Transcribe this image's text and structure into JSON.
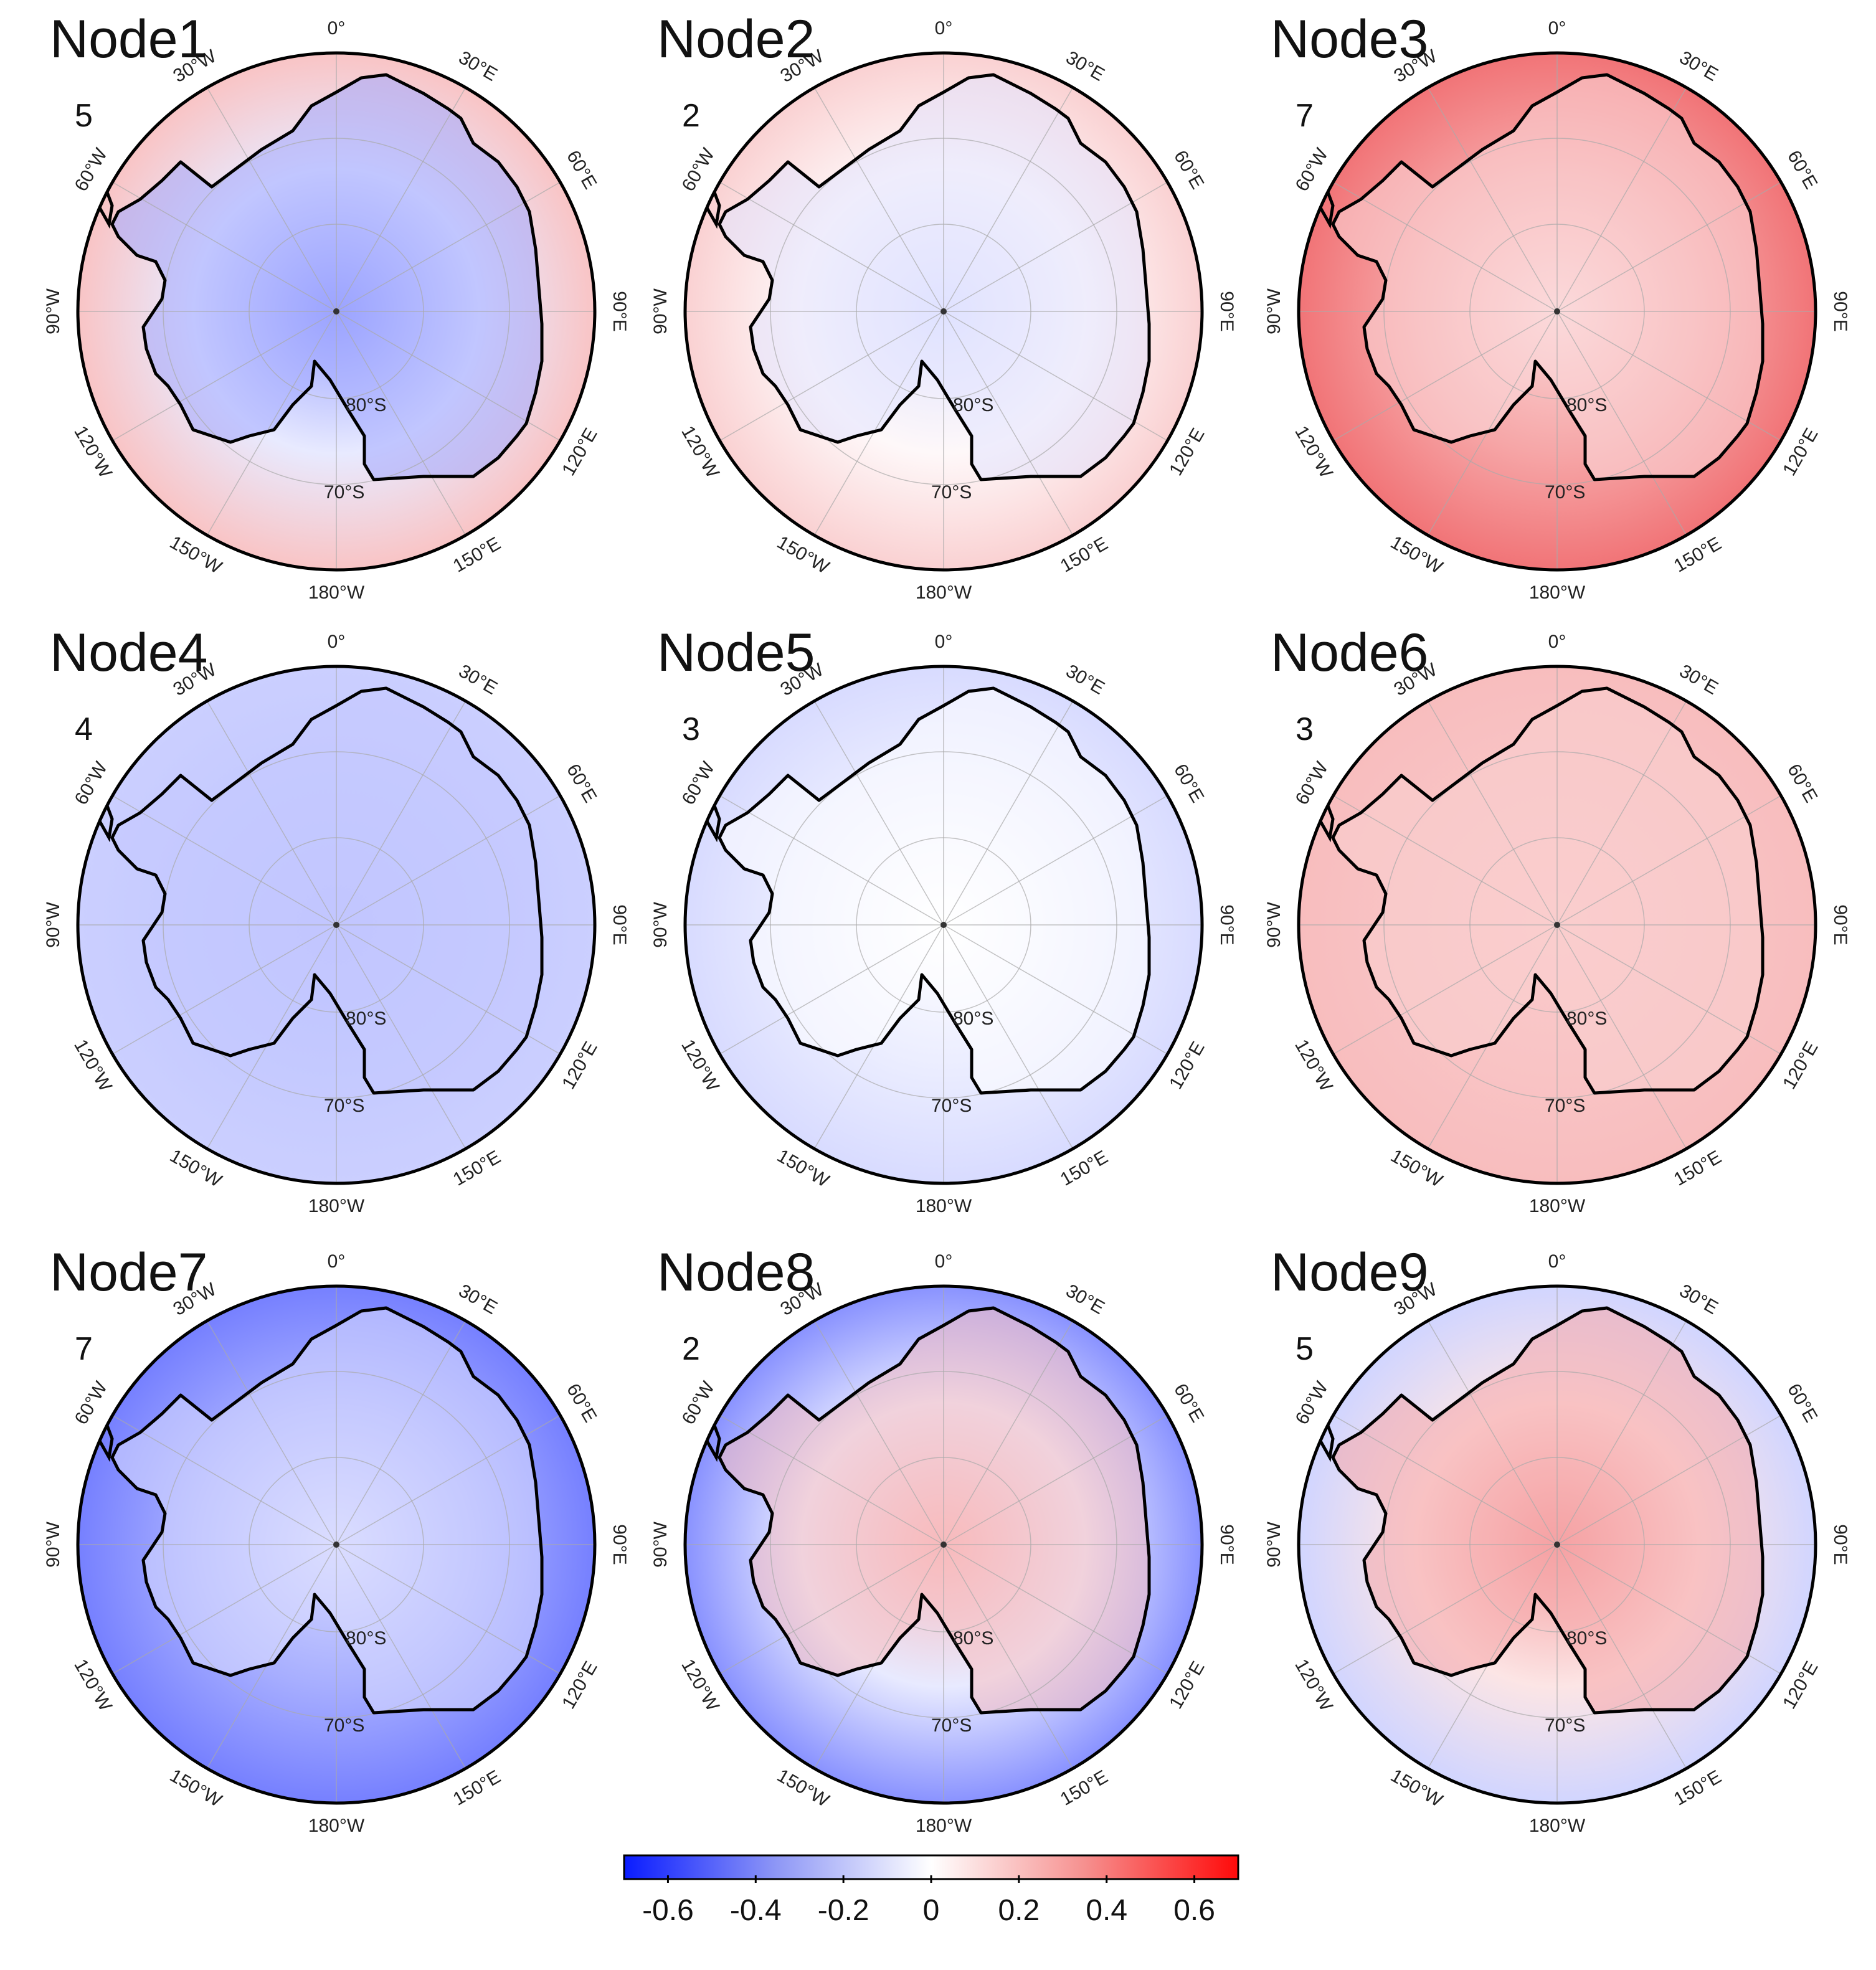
{
  "meridian_labels": [
    "0°",
    "30°E",
    "60°E",
    "90°E",
    "120°E",
    "150°E",
    "180°W",
    "150°W",
    "120°W",
    "90°W",
    "60°W",
    "30°W"
  ],
  "latitude_labels": [
    "80°S",
    "70°S"
  ],
  "palette": {
    "negative": "#2b3cf0",
    "neutral": "#ffffff",
    "positive": "#e8262a",
    "coast": "#000000",
    "grid": "#bbbbbb"
  },
  "nodes": [
    {
      "title": "Node1",
      "count": "5",
      "tone": "mixed",
      "ocean": 0.18,
      "continent": -0.32
    },
    {
      "title": "Node2",
      "count": "2",
      "tone": "mixed",
      "ocean": 0.14,
      "continent": -0.1
    },
    {
      "title": "Node3",
      "count": "7",
      "tone": "mixed",
      "ocean": 0.42,
      "continent": 0.12
    },
    {
      "title": "Node4",
      "count": "4",
      "tone": "negative",
      "ocean": -0.16,
      "continent": -0.2
    },
    {
      "title": "Node5",
      "count": "3",
      "tone": "negative",
      "ocean": -0.12,
      "continent": 0.0
    },
    {
      "title": "Node6",
      "count": "3",
      "tone": "positive",
      "ocean": 0.2,
      "continent": 0.16
    },
    {
      "title": "Node7",
      "count": "7",
      "tone": "negative",
      "ocean": -0.42,
      "continent": -0.12
    },
    {
      "title": "Node8",
      "count": "2",
      "tone": "mixed",
      "ocean": -0.36,
      "continent": 0.22
    },
    {
      "title": "Node9",
      "count": "5",
      "tone": "mixed",
      "ocean": -0.14,
      "continent": 0.3
    }
  ],
  "colorbar": {
    "ticks": [
      "-0.6",
      "-0.4",
      "-0.2",
      "0",
      "0.2",
      "0.4",
      "0.6"
    ],
    "min": -0.7,
    "max": 0.7
  }
}
